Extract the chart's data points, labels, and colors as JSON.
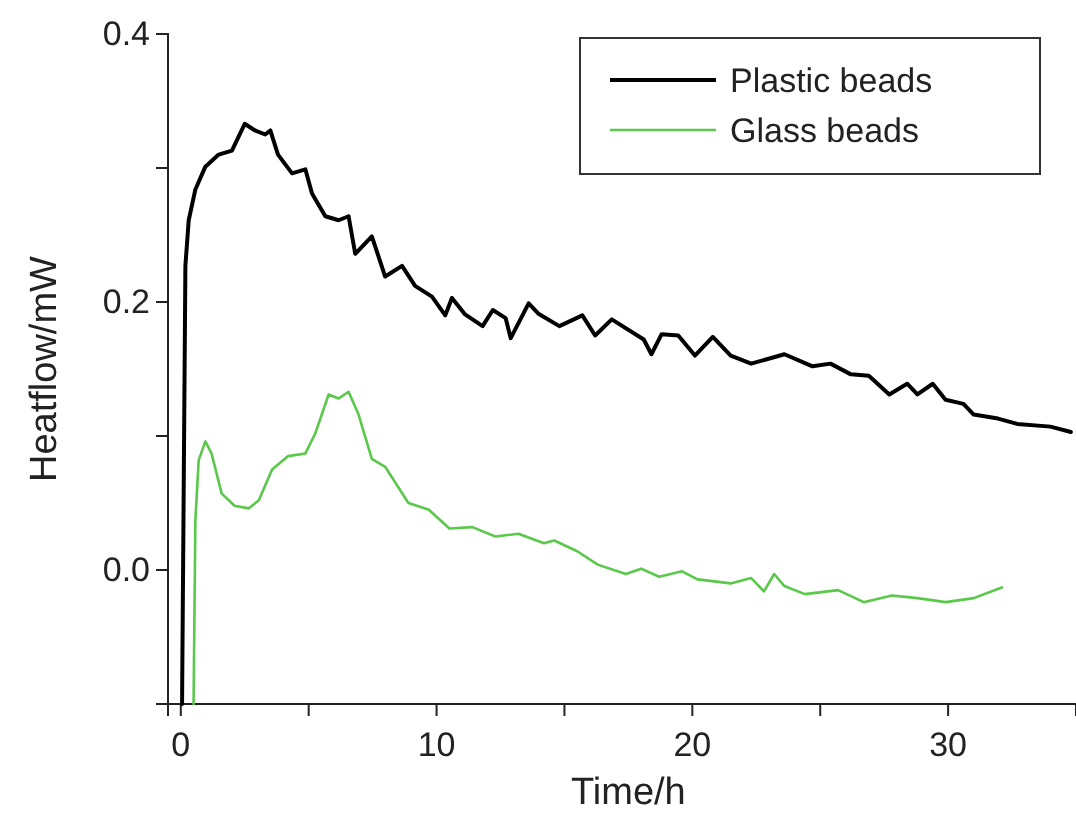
{
  "chart_data": {
    "type": "line",
    "xlabel": "Time/h",
    "ylabel": "Heatflow/mW",
    "xlim": [
      -0.5,
      35
    ],
    "ylim": [
      -0.1,
      0.4
    ],
    "xticks": [
      0,
      {
        "value": 5,
        "label": null
      },
      10,
      {
        "value": 15,
        "label": null
      },
      20,
      {
        "value": 25,
        "label": null
      },
      30,
      {
        "value": 35,
        "label": null
      }
    ],
    "yticks": [
      {
        "value": -0.1,
        "label": null
      },
      {
        "value": 0,
        "label": "0.0"
      },
      {
        "value": 0.1,
        "label": null
      },
      0.2,
      {
        "value": 0.3,
        "label": null
      },
      0.4
    ],
    "grid": false,
    "legend": "top right",
    "line_style": "solid",
    "marker": "none",
    "series": [
      {
        "name": "Plastic beads",
        "color": "#000000",
        "x": [
          0.05,
          0.18,
          0.31,
          0.57,
          0.96,
          1.48,
          2.0,
          2.5,
          2.9,
          3.3,
          3.5,
          3.8,
          4.35,
          4.87,
          5.13,
          5.65,
          6.17,
          6.56,
          6.82,
          7.47,
          7.99,
          8.65,
          9.16,
          9.82,
          10.34,
          10.6,
          11.1,
          11.8,
          12.2,
          12.7,
          12.9,
          13.6,
          14.0,
          14.8,
          15.7,
          16.2,
          16.85,
          18.1,
          18.4,
          18.8,
          19.45,
          20.1,
          20.8,
          21.5,
          22.3,
          23.6,
          24.7,
          25.4,
          26.2,
          26.9,
          27.7,
          28.4,
          28.8,
          29.4,
          29.9,
          30.6,
          31.0,
          31.95,
          32.7,
          34.0,
          34.8
        ],
        "values": [
          -0.1,
          0.227,
          0.261,
          0.284,
          0.301,
          0.31,
          0.313,
          0.333,
          0.328,
          0.325,
          0.328,
          0.31,
          0.296,
          0.299,
          0.281,
          0.264,
          0.261,
          0.264,
          0.236,
          0.249,
          0.219,
          0.227,
          0.212,
          0.204,
          0.19,
          0.203,
          0.191,
          0.182,
          0.194,
          0.188,
          0.173,
          0.199,
          0.191,
          0.182,
          0.19,
          0.175,
          0.187,
          0.172,
          0.161,
          0.176,
          0.175,
          0.16,
          0.174,
          0.16,
          0.154,
          0.161,
          0.152,
          0.154,
          0.146,
          0.145,
          0.131,
          0.139,
          0.131,
          0.139,
          0.127,
          0.124,
          0.116,
          0.113,
          0.109,
          0.107,
          0.103
        ]
      },
      {
        "name": "Glass beads",
        "color": "#5ac84a",
        "x": [
          0.5,
          0.57,
          0.7,
          0.96,
          1.2,
          1.6,
          2.1,
          2.66,
          3.05,
          3.57,
          4.2,
          4.87,
          5.26,
          5.78,
          6.17,
          6.56,
          6.95,
          7.47,
          7.99,
          8.9,
          9.7,
          10.5,
          11.4,
          12.3,
          13.2,
          14.2,
          14.6,
          15.5,
          16.3,
          17.4,
          18.0,
          18.7,
          19.6,
          20.2,
          21.5,
          22.3,
          22.8,
          23.2,
          23.6,
          24.4,
          25.7,
          26.7,
          27.8,
          28.8,
          29.9,
          31.0,
          32.1
        ],
        "values": [
          -0.1,
          0.037,
          0.082,
          0.096,
          0.087,
          0.057,
          0.048,
          0.046,
          0.052,
          0.075,
          0.085,
          0.087,
          0.102,
          0.131,
          0.128,
          0.133,
          0.116,
          0.083,
          0.077,
          0.05,
          0.045,
          0.031,
          0.032,
          0.025,
          0.027,
          0.02,
          0.022,
          0.014,
          0.004,
          -0.003,
          0.001,
          -0.005,
          -0.001,
          -0.007,
          -0.01,
          -0.006,
          -0.016,
          -0.003,
          -0.012,
          -0.018,
          -0.015,
          -0.024,
          -0.019,
          -0.021,
          -0.024,
          -0.021,
          -0.013
        ]
      }
    ]
  }
}
